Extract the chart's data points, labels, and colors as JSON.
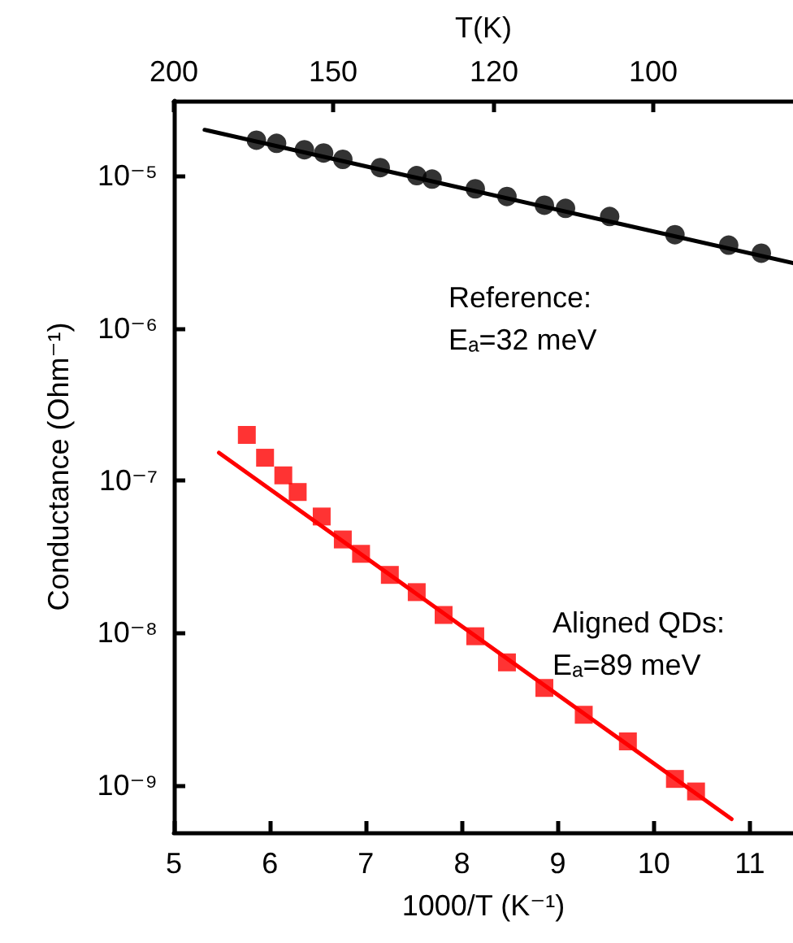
{
  "chart_data": {
    "type": "scatter",
    "xlabel": "1000/T (K⁻¹)",
    "ylabel": "Conductance (Ohm⁻¹)",
    "x2label": "T(K)",
    "xlim": [
      5,
      11.45
    ],
    "xticks": [
      5,
      6,
      7,
      8,
      9,
      10,
      11
    ],
    "ylim": [
      4.9e-10,
      3.1e-05
    ],
    "yticks": [
      {
        "value": 1e-09,
        "label": "10⁻⁹"
      },
      {
        "value": 1e-08,
        "label": "10⁻⁸"
      },
      {
        "value": 1e-07,
        "label": "10⁻⁷"
      },
      {
        "value": 1e-06,
        "label": "10⁻⁶"
      },
      {
        "value": 1e-05,
        "label": "10⁻⁵"
      }
    ],
    "log": "y",
    "grid": false,
    "series": [
      {
        "marker": "circle",
        "color": "#000000",
        "x": [
          5.86,
          6.07,
          6.36,
          6.56,
          6.76,
          7.15,
          7.53,
          7.69,
          8.14,
          8.47,
          8.86,
          9.08,
          9.54,
          10.22,
          10.78,
          11.12
        ],
        "values": [
          1.71e-05,
          1.63e-05,
          1.48e-05,
          1.41e-05,
          1.28e-05,
          1.13e-05,
          1e-05,
          9.5e-06,
          8.2e-06,
          7.3e-06,
          6.4e-06,
          6.1e-06,
          5.4e-06,
          4.1e-06,
          3.5e-06,
          3.1e-06
        ]
      },
      {
        "type": "line",
        "marker": "none",
        "line_style": "solid",
        "color": "#000000",
        "x": [
          5.32,
          11.45
        ],
        "values": [
          2e-05,
          2.67e-06
        ]
      },
      {
        "marker": "square",
        "color": "#ff0000",
        "x": [
          5.76,
          5.95,
          6.14,
          6.29,
          6.54,
          6.76,
          6.95,
          7.25,
          7.53,
          7.81,
          8.14,
          8.47,
          8.86,
          9.27,
          9.73,
          10.22,
          10.44
        ],
        "values": [
          1.99e-07,
          1.41e-07,
          1.08e-07,
          8.4e-08,
          5.8e-08,
          4.1e-08,
          3.3e-08,
          2.4e-08,
          1.85e-08,
          1.31e-08,
          9.5e-09,
          6.4e-09,
          4.35e-09,
          2.9e-09,
          1.94e-09,
          1.1e-09,
          9.1e-10
        ]
      },
      {
        "type": "line",
        "marker": "none",
        "line_style": "solid",
        "color": "#ff0000",
        "x": [
          5.47,
          10.81
        ],
        "values": [
          1.52e-07,
          6e-10
        ]
      }
    ],
    "annotations": [
      "Reference:\nEₐ=32 meV",
      "Aligned QDs:\nEₐ=89 meV",
      "200",
      "150",
      "120",
      "100"
    ]
  }
}
